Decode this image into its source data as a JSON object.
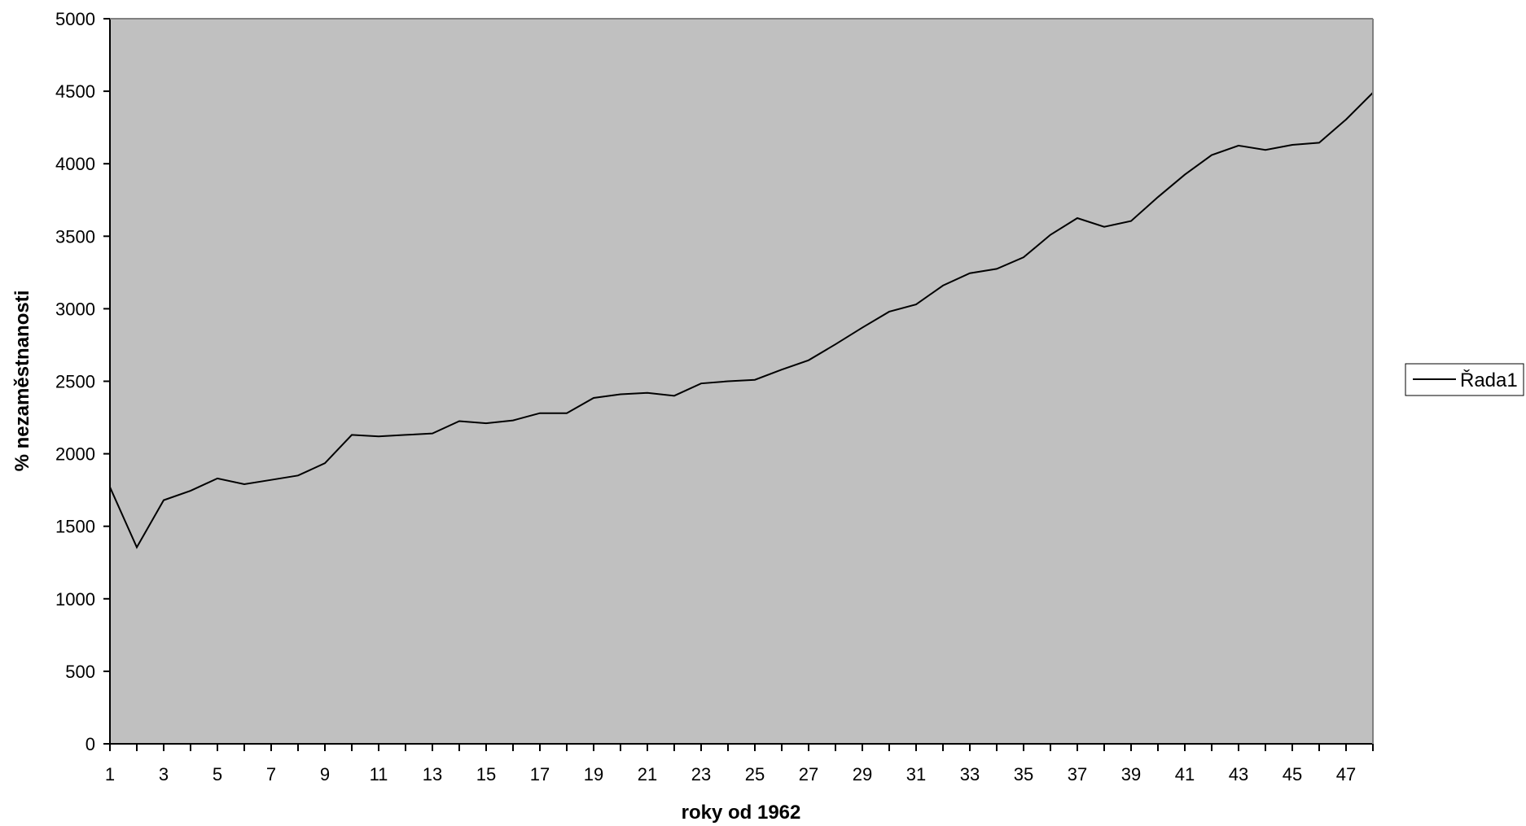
{
  "chart_data": {
    "type": "line",
    "xlabel": "roky od 1962",
    "ylabel": "% nezaměstnanosti",
    "x_range": [
      1,
      48
    ],
    "ylim": [
      0,
      5000
    ],
    "y_ticks": [
      0,
      500,
      1000,
      1500,
      2000,
      2500,
      3000,
      3500,
      4000,
      4500,
      5000
    ],
    "x_tick_labels": [
      "1",
      "3",
      "5",
      "7",
      "9",
      "11",
      "13",
      "15",
      "17",
      "19",
      "21",
      "23",
      "25",
      "27",
      "29",
      "31",
      "33",
      "35",
      "37",
      "39",
      "41",
      "43",
      "45",
      "47"
    ],
    "grid": false,
    "legend": {
      "position": "right"
    },
    "plot_background": "#c0c0c0",
    "line_color": "#000000",
    "series": [
      {
        "name": "Řada1",
        "x": [
          1,
          2,
          3,
          4,
          5,
          6,
          7,
          8,
          9,
          10,
          11,
          12,
          13,
          14,
          15,
          16,
          17,
          18,
          19,
          20,
          21,
          22,
          23,
          24,
          25,
          26,
          27,
          28,
          29,
          30,
          31,
          32,
          33,
          34,
          35,
          36,
          37,
          38,
          39,
          40,
          41,
          42,
          43,
          44,
          45,
          46,
          47,
          48
        ],
        "values": [
          1770,
          1355,
          1680,
          1745,
          1830,
          1790,
          1820,
          1850,
          1935,
          2130,
          2120,
          2130,
          2140,
          2225,
          2210,
          2230,
          2280,
          2280,
          2385,
          2410,
          2420,
          2400,
          2485,
          2500,
          2510,
          2580,
          2645,
          2755,
          2870,
          2980,
          3030,
          3160,
          3245,
          3275,
          3355,
          3510,
          3625,
          3565,
          3605,
          3770,
          3925,
          4060,
          4125,
          4095,
          4130,
          4145,
          4305,
          4490
        ]
      }
    ]
  }
}
